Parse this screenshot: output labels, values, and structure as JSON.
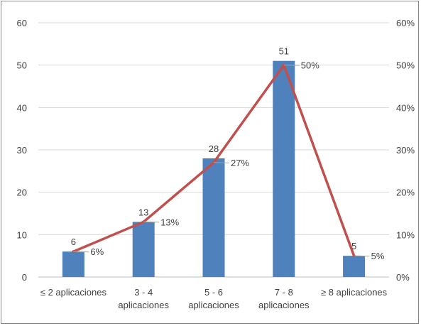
{
  "chart_data": {
    "type": "bar",
    "categories": [
      [
        "≤ 2 aplicaciones"
      ],
      [
        "3 - 4",
        "aplicaciones"
      ],
      [
        "5 - 6",
        "aplicaciones"
      ],
      [
        "7 - 8",
        "aplicaciones"
      ],
      [
        "≥ 8 aplicaciones"
      ]
    ],
    "series": [
      {
        "type": "bar",
        "values": [
          6,
          13,
          28,
          51,
          5
        ],
        "axis": "left",
        "color": "#4f81bd",
        "labels": [
          "6",
          "13",
          "28",
          "51",
          "5"
        ]
      },
      {
        "type": "line",
        "values": [
          6,
          13,
          27,
          50,
          5
        ],
        "axis": "right",
        "unit": "%",
        "color": "#c0504d",
        "labels": [
          "6%",
          "13%",
          "27%",
          "50%",
          "5%"
        ]
      }
    ],
    "y_left": {
      "min": 0,
      "max": 60,
      "ticks": [
        "0",
        "10",
        "20",
        "30",
        "40",
        "50",
        "60"
      ]
    },
    "y_right": {
      "min": 0,
      "max": 60,
      "ticks": [
        "0%",
        "10%",
        "20%",
        "30%",
        "40%",
        "50%",
        "60%"
      ]
    },
    "grid": true,
    "legend": "none"
  }
}
